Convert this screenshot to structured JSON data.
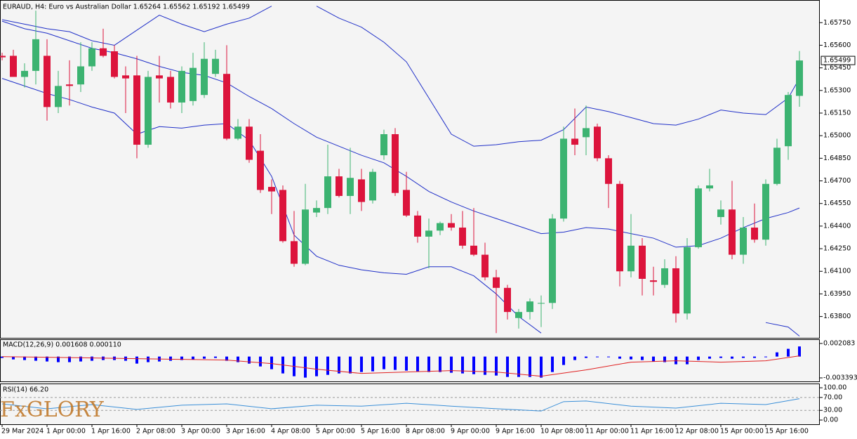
{
  "logo": "FxGLORY",
  "chart_data": [
    {
      "type": "candlestick",
      "title": "EURAUD, H4:  Euro vs Australian Dollar  1.65264 1.65562 1.65192 1.65499",
      "categories": [
        "29 Mar 2024",
        null,
        null,
        null,
        "1 Apr 00:00",
        null,
        null,
        null,
        "1 Apr 16:00",
        null,
        null,
        null,
        "2 Apr 08:00",
        null,
        null,
        null,
        "3 Apr 00:00",
        null,
        null,
        null,
        "3 Apr 16:00",
        null,
        null,
        null,
        "4 Apr 08:00",
        null,
        null,
        null,
        "5 Apr 00:00",
        null,
        null,
        null,
        "5 Apr 16:00",
        null,
        null,
        null,
        "8 Apr 08:00",
        null,
        null,
        null,
        "9 Apr 00:00",
        null,
        null,
        null,
        "9 Apr 16:00",
        null,
        null,
        null,
        "10 Apr 08:00",
        null,
        null,
        null,
        "11 Apr 00:00",
        null,
        null,
        null,
        "11 Apr 16:00",
        null,
        null,
        null,
        "12 Apr 08:00",
        null,
        null,
        null,
        "15 Apr 00:00",
        null,
        null,
        null,
        "15 Apr 16:00",
        null,
        null,
        null
      ],
      "open": [
        1.6553,
        1.6553,
        1.6539,
        1.6543,
        1.6553,
        1.6519,
        1.6534,
        1.6534,
        1.6546,
        1.6558,
        1.6556,
        1.654,
        1.654,
        1.6494,
        1.654,
        1.6539,
        1.6522,
        1.6523,
        1.6527,
        1.6541,
        1.6541,
        1.6498,
        1.6506,
        1.649,
        1.6466,
        1.6464,
        1.643,
        1.6415,
        1.6449,
        1.6452,
        1.6473,
        1.646,
        1.6471,
        1.6457,
        1.6487,
        1.6501,
        1.6464,
        1.6447,
        1.6433,
        1.6437,
        1.6442,
        1.6439,
        1.6427,
        1.6421,
        1.6406,
        1.6399,
        1.6379,
        1.6383,
        1.6389,
        1.6389,
        1.6445,
        1.6498,
        1.6499,
        1.6506,
        1.6485,
        1.6468,
        1.641,
        1.6427,
        1.6404,
        1.6401,
        1.6412,
        1.6382,
        1.6426,
        1.6465,
        1.6446,
        1.6451,
        1.6421,
        1.6439,
        1.6431,
        1.6468,
        1.6493,
        1.65264
      ],
      "high": [
        1.6555,
        1.6557,
        1.6548,
        1.6583,
        1.6564,
        1.6543,
        1.655,
        1.6562,
        1.6562,
        1.6571,
        1.656,
        1.6546,
        1.6553,
        1.6543,
        1.6553,
        1.6543,
        1.6546,
        1.6555,
        1.6562,
        1.6557,
        1.656,
        1.6511,
        1.6511,
        1.6501,
        1.6471,
        1.6467,
        1.645,
        1.6468,
        1.6457,
        1.6494,
        1.6478,
        1.6492,
        1.6478,
        1.6478,
        1.6504,
        1.6505,
        1.6476,
        1.645,
        1.6445,
        1.6443,
        1.6448,
        1.645,
        1.6452,
        1.6429,
        1.6411,
        1.6401,
        1.6385,
        1.6392,
        1.6394,
        1.6448,
        1.6506,
        1.6518,
        1.652,
        1.6508,
        1.6487,
        1.647,
        1.6448,
        1.6432,
        1.6413,
        1.6418,
        1.642,
        1.6432,
        1.6467,
        1.6478,
        1.6457,
        1.647,
        1.6446,
        1.6455,
        1.6471,
        1.6498,
        1.6529,
        1.65562
      ],
      "low": [
        1.655,
        1.6539,
        1.6532,
        1.6534,
        1.651,
        1.6515,
        1.652,
        1.6529,
        1.6543,
        1.6552,
        1.6538,
        1.6515,
        1.6485,
        1.6492,
        1.6522,
        1.6518,
        1.6515,
        1.652,
        1.6525,
        1.6539,
        1.6497,
        1.6497,
        1.6482,
        1.6462,
        1.6448,
        1.6429,
        1.6413,
        1.6414,
        1.6446,
        1.6448,
        1.6459,
        1.6448,
        1.645,
        1.6455,
        1.6484,
        1.646,
        1.6446,
        1.6429,
        1.6412,
        1.6434,
        1.6437,
        1.6425,
        1.642,
        1.6404,
        1.6369,
        1.6378,
        1.6372,
        1.6378,
        1.6373,
        1.6385,
        1.6443,
        1.6487,
        1.6487,
        1.6483,
        1.6452,
        1.64,
        1.6406,
        1.6394,
        1.6394,
        1.6399,
        1.6376,
        1.6378,
        1.6425,
        1.6463,
        1.6441,
        1.6418,
        1.6415,
        1.6429,
        1.6427,
        1.6467,
        1.6484,
        1.65192
      ],
      "close": [
        1.6552,
        1.6539,
        1.6543,
        1.6564,
        1.6519,
        1.6533,
        1.6533,
        1.6546,
        1.6558,
        1.6553,
        1.6539,
        1.6538,
        1.6494,
        1.6539,
        1.6538,
        1.6522,
        1.6543,
        1.6545,
        1.6551,
        1.6551,
        1.6498,
        1.6506,
        1.6484,
        1.6464,
        1.6463,
        1.643,
        1.6415,
        1.6451,
        1.6452,
        1.6473,
        1.646,
        1.6472,
        1.6456,
        1.6476,
        1.6501,
        1.6462,
        1.6447,
        1.6433,
        1.6437,
        1.6442,
        1.6439,
        1.6427,
        1.6421,
        1.6406,
        1.6399,
        1.6383,
        1.6383,
        1.639,
        1.6389,
        1.6445,
        1.6498,
        1.6494,
        1.6505,
        1.6485,
        1.6468,
        1.641,
        1.6427,
        1.6405,
        1.6403,
        1.6412,
        1.6382,
        1.6426,
        1.6465,
        1.6467,
        1.6451,
        1.6421,
        1.6439,
        1.6431,
        1.6468,
        1.6492,
        1.6527,
        1.65499
      ],
      "up_color": "#3cb371",
      "down_color": "#dc143c",
      "overlays": [
        {
          "color": "#1f2fc8",
          "x": [
            0,
            2,
            4,
            6,
            8,
            10,
            12,
            14,
            16,
            18,
            20,
            22,
            24,
            26,
            28,
            30,
            32,
            34,
            36,
            38,
            40,
            42,
            44,
            46,
            48,
            50,
            52,
            54,
            56,
            58,
            60,
            62,
            64,
            66,
            68,
            70,
            71
          ],
          "values": [
            1.6576,
            1.6571,
            1.6568,
            1.6563,
            1.6558,
            1.6555,
            1.6551,
            1.6546,
            1.6542,
            1.654,
            1.6535,
            1.6526,
            1.6518,
            1.6508,
            1.6499,
            1.6493,
            1.6487,
            1.6482,
            1.6473,
            1.6463,
            1.6456,
            1.645,
            1.6445,
            1.644,
            1.6435,
            1.6436,
            1.6439,
            1.6438,
            1.6435,
            1.6432,
            1.6426,
            1.6427,
            1.6432,
            1.6439,
            1.6445,
            1.6449,
            1.6452
          ]
        },
        {
          "color": "#1f2fc8",
          "x": [
            0,
            2,
            4,
            6,
            8,
            10,
            12,
            14,
            16,
            18,
            20,
            22,
            24,
            26,
            28,
            30,
            32,
            34,
            36,
            38,
            40,
            42,
            44,
            46,
            48,
            50,
            52,
            54,
            56,
            58,
            60,
            62,
            64,
            66,
            68,
            70,
            71
          ],
          "values": [
            1.6577,
            1.6574,
            1.6571,
            1.6569,
            1.6563,
            1.656,
            1.657,
            1.658,
            1.6574,
            1.6569,
            1.6574,
            1.6578,
            1.6586,
            null,
            1.6586,
            1.6578,
            1.6572,
            1.6562,
            1.6549,
            1.6525,
            1.6501,
            1.6493,
            1.6494,
            1.6496,
            1.6497,
            1.6504,
            1.6519,
            1.6516,
            1.6512,
            1.6508,
            1.6507,
            1.6511,
            1.6517,
            1.6515,
            1.6514,
            1.6525,
            1.6538
          ]
        },
        {
          "color": "#1f2fc8",
          "x": [
            0,
            2,
            4,
            6,
            8,
            10,
            12,
            14,
            16,
            18,
            20,
            22,
            24,
            26,
            28,
            30,
            32,
            34,
            36,
            38,
            40,
            42,
            44,
            46,
            48,
            50,
            52,
            54,
            56,
            58,
            60,
            62,
            64,
            66,
            68,
            70,
            71
          ],
          "values": [
            1.6538,
            1.6533,
            1.6528,
            1.6524,
            1.6519,
            1.6515,
            1.6501,
            1.6506,
            1.6505,
            1.6507,
            1.6508,
            1.6497,
            1.6473,
            1.6434,
            1.642,
            1.6414,
            1.6411,
            1.6409,
            1.6408,
            1.6413,
            1.6413,
            1.6407,
            1.6395,
            1.638,
            1.6369,
            null,
            null,
            null,
            null,
            null,
            null,
            null,
            null,
            null,
            1.6376,
            1.6373,
            1.6367
          ]
        }
      ],
      "last_price": 1.65499,
      "ylim": [
        1.63663,
        1.65891
      ],
      "yticks": [
        {
          "value": 1.6575,
          "label": "1.65750"
        },
        {
          "value": 1.656,
          "label": "1.65600"
        },
        {
          "value": 1.6545,
          "label": "1.65450"
        },
        {
          "value": 1.653,
          "label": "1.65300"
        },
        {
          "value": 1.6515,
          "label": "1.65150"
        },
        {
          "value": 1.65,
          "label": "1.65000"
        },
        {
          "value": 1.6485,
          "label": "1.64850"
        },
        {
          "value": 1.647,
          "label": "1.64700"
        },
        {
          "value": 1.6455,
          "label": "1.64550"
        },
        {
          "value": 1.644,
          "label": "1.64400"
        },
        {
          "value": 1.6425,
          "label": "1.64250"
        },
        {
          "value": 1.641,
          "label": "1.64100"
        },
        {
          "value": 1.6395,
          "label": "1.63950"
        },
        {
          "value": 1.638,
          "label": "1.63800"
        }
      ]
    },
    {
      "type": "macd",
      "title": "MACD(12,26,9) 0.001608 0.000110",
      "color": "#0000ff",
      "values": [
        -0.00022,
        -0.00045,
        -0.00056,
        -0.00067,
        -0.00078,
        -0.00089,
        -0.00089,
        -0.00078,
        -0.00067,
        -0.00056,
        -0.00056,
        -0.00067,
        -0.00112,
        -0.00089,
        -0.00078,
        -0.00067,
        -0.00056,
        -0.00045,
        -0.00034,
        -0.00022,
        -0.00067,
        -0.00089,
        -0.00112,
        -0.00157,
        -0.00201,
        -0.00268,
        -0.00313,
        -0.00335,
        -0.00313,
        -0.00291,
        -0.00268,
        -0.00268,
        -0.00246,
        -0.00235,
        -0.00201,
        -0.00212,
        -0.00224,
        -0.00235,
        -0.00246,
        -0.00246,
        -0.00257,
        -0.00268,
        -0.0028,
        -0.00291,
        -0.00302,
        -0.00324,
        -0.00324,
        -0.00324,
        -0.00335,
        -0.00246,
        -0.00134,
        -0.00056,
        -0.00022,
        -5e-05,
        -5e-05,
        -0.00034,
        -0.00045,
        -0.00056,
        -0.00078,
        -0.00089,
        -0.00123,
        -0.00123,
        -0.00056,
        -0.00034,
        -0.00022,
        -0.00034,
        -0.00022,
        -0.00022,
        -5e-05,
        0.00067,
        0.00123,
        0.001608
      ],
      "signal": {
        "color": "#e02020",
        "x": [
          0,
          4,
          8,
          12,
          16,
          20,
          24,
          28,
          32,
          36,
          40,
          44,
          48,
          52,
          56,
          60,
          64,
          68,
          71
        ],
        "values": [
          -2e-05,
          -0.00011,
          -0.00022,
          -0.00034,
          -0.00045,
          -0.00056,
          -0.00112,
          -0.00201,
          -0.00268,
          -0.00246,
          -0.00224,
          -0.00246,
          -0.00313,
          -0.00212,
          -0.00089,
          -0.00067,
          -0.00089,
          -0.00067,
          0.00011
        ]
      },
      "ylim": [
        -0.00395,
        0.00275
      ],
      "yticks": [
        0.002083,
        -0.003393
      ]
    },
    {
      "type": "line",
      "title": "RSI(14) 66.20",
      "color": "#3a8fd8",
      "x": [
        0,
        4,
        8,
        12,
        16,
        20,
        24,
        28,
        32,
        36,
        40,
        44,
        48,
        50,
        52,
        56,
        60,
        64,
        68,
        71
      ],
      "values": [
        50,
        35,
        48,
        33,
        46,
        50,
        35,
        46,
        43,
        52,
        43,
        35,
        28,
        57,
        59,
        43,
        37,
        52,
        48,
        66.2
      ],
      "levels": [
        70,
        30
      ],
      "ylim": [
        -13,
        111
      ],
      "yticks": [
        {
          "value": 100,
          "label": "100.00"
        },
        {
          "value": 70,
          "label": "70.00"
        },
        {
          "value": 30,
          "label": "30.00"
        },
        {
          "value": 0,
          "label": "0.00"
        }
      ]
    }
  ]
}
